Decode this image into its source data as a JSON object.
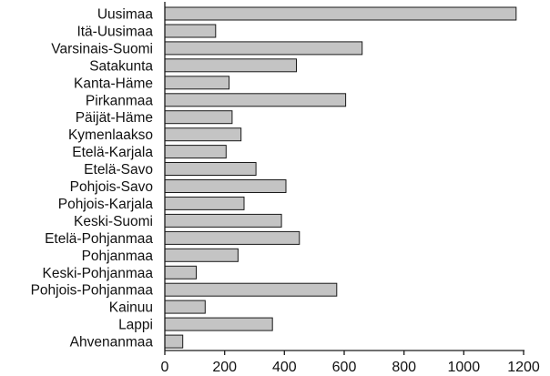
{
  "chart_data": {
    "type": "bar",
    "orientation": "horizontal",
    "title": "",
    "xlabel": "",
    "ylabel": "",
    "categories": [
      "Uusimaa",
      "Itä-Uusimaa",
      "Varsinais-Suomi",
      "Satakunta",
      "Kanta-Häme",
      "Pirkanmaa",
      "Päijät-Häme",
      "Kymenlaakso",
      "Etelä-Karjala",
      "Etelä-Savo",
      "Pohjois-Savo",
      "Pohjois-Karjala",
      "Keski-Suomi",
      "Etelä-Pohjanmaa",
      "Pohjanmaa",
      "Keski-Pohjanmaa",
      "Pohjois-Pohjanmaa",
      "Kainuu",
      "Lappi",
      "Ahvenanmaa"
    ],
    "values": [
      1175,
      170,
      660,
      440,
      215,
      605,
      225,
      255,
      205,
      305,
      405,
      265,
      390,
      450,
      245,
      105,
      575,
      135,
      360,
      60
    ],
    "xlim": [
      0,
      1200
    ],
    "xticks": [
      "0",
      "200",
      "400",
      "600",
      "800",
      "1000",
      "1200"
    ],
    "grid": false,
    "colors": {
      "bar_fill": "#c4c4c4",
      "bar_stroke": "#1a1a1a",
      "axis": "#1a1a1a"
    }
  }
}
